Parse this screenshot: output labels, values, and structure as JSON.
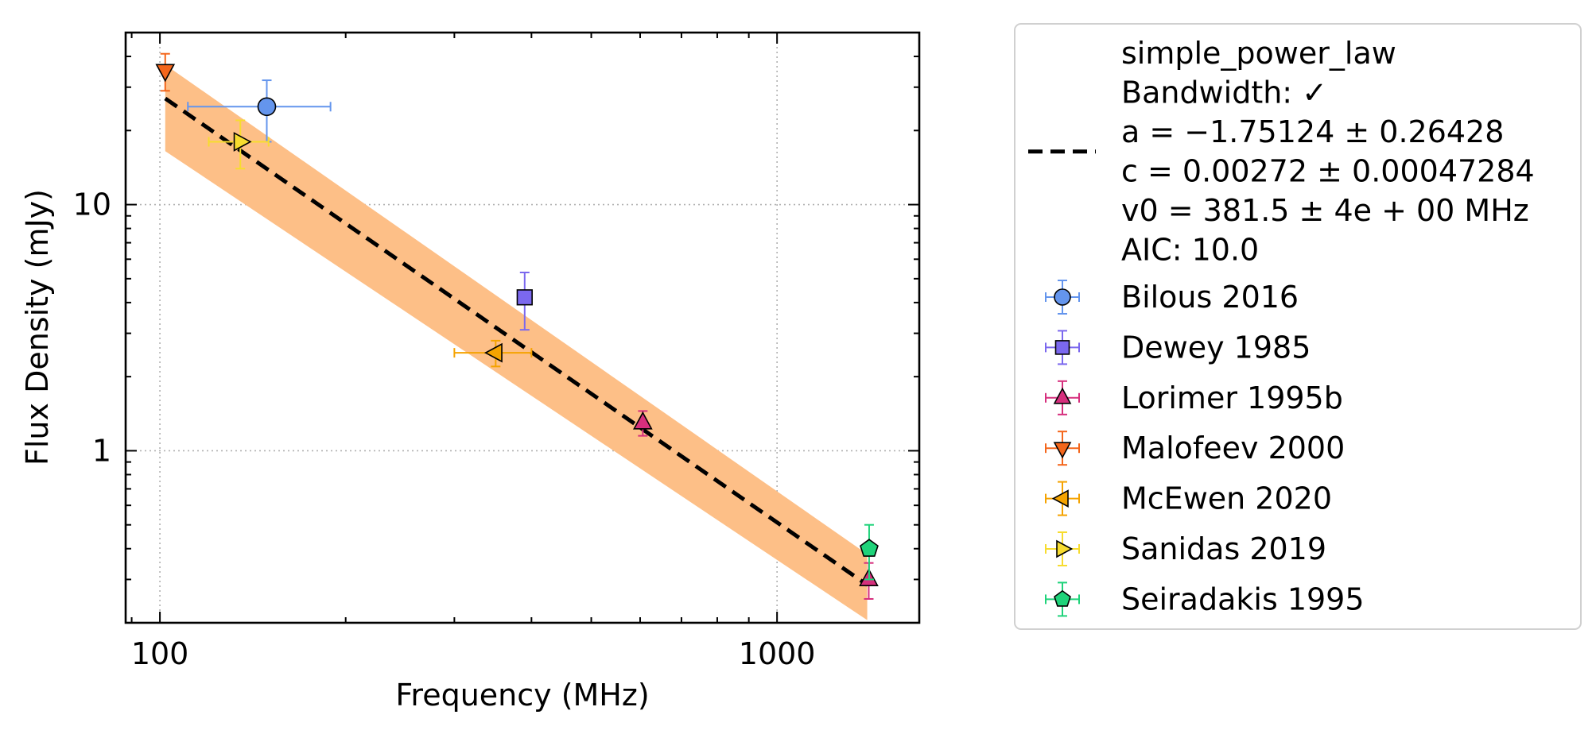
{
  "chart_data": {
    "type": "scatter",
    "xlabel": "Frequency (MHz)",
    "ylabel": "Flux Density (mJy)",
    "x_scale": "log",
    "y_scale": "log",
    "xlim": [
      88,
      1700
    ],
    "ylim": [
      0.2,
      50
    ],
    "x_ticks": [
      {
        "value": 100,
        "label": "100"
      },
      {
        "value": 1000,
        "label": "1000"
      }
    ],
    "y_ticks": [
      {
        "value": 1,
        "label": "1"
      },
      {
        "value": 10,
        "label": "10"
      }
    ],
    "grid": true,
    "legend_position": "outside-right",
    "fit": {
      "label_lines": [
        "simple_power_law",
        "Bandwidth: ✓",
        "a = −1.75124 ± 0.26428",
        "c = 0.00272 ± 0.00047284",
        "v0 = 381.5 ± 4e + 00 MHz",
        "AIC: 10.0"
      ],
      "model": "power_law",
      "a": -1.75124,
      "c": 0.00272,
      "v0": 381.5,
      "x_range": [
        102,
        1400
      ],
      "line_color": "#000000",
      "band_color": "#fdbf87",
      "band_upper": [
        [
          102,
          37
        ],
        [
          1400,
          0.38
        ]
      ],
      "band_lower": [
        [
          102,
          16.5
        ],
        [
          1400,
          0.205
        ]
      ]
    },
    "series": [
      {
        "name": "Bilous 2016",
        "marker": "circle",
        "color": "#6495ed",
        "points": [
          {
            "x": 149,
            "y": 25,
            "xerr": [
              38,
              40
            ],
            "yerr": [
              7,
              7
            ]
          }
        ]
      },
      {
        "name": "Dewey 1985",
        "marker": "square",
        "color": "#7b68ee",
        "points": [
          {
            "x": 390,
            "y": 4.2,
            "xerr": [
              0,
              0
            ],
            "yerr": [
              1.1,
              1.1
            ]
          }
        ]
      },
      {
        "name": "Lorimer 1995b",
        "marker": "triangle-up",
        "color": "#d62f7d",
        "points": [
          {
            "x": 606,
            "y": 1.3,
            "xerr": [
              0,
              0
            ],
            "yerr": [
              0.15,
              0.15
            ]
          },
          {
            "x": 1408,
            "y": 0.3,
            "xerr": [
              0,
              0
            ],
            "yerr": [
              0.05,
              0.05
            ]
          }
        ]
      },
      {
        "name": "Malofeev 2000",
        "marker": "triangle-down",
        "color": "#f4661b",
        "points": [
          {
            "x": 102,
            "y": 35,
            "xerr": [
              0,
              0
            ],
            "yerr": [
              6,
              6
            ]
          }
        ]
      },
      {
        "name": "McEwen 2020",
        "marker": "triangle-left",
        "color": "#f5a300",
        "points": [
          {
            "x": 350,
            "y": 2.5,
            "xerr": [
              50,
              50
            ],
            "yerr": [
              0.3,
              0.3
            ]
          }
        ]
      },
      {
        "name": "Sanidas 2019",
        "marker": "triangle-right",
        "color": "#f7dc2f",
        "points": [
          {
            "x": 135,
            "y": 18,
            "xerr": [
              15,
              15
            ],
            "yerr": [
              4,
              4
            ]
          }
        ]
      },
      {
        "name": "Seiradakis 1995",
        "marker": "pentagon",
        "color": "#1fd37a",
        "points": [
          {
            "x": 1410,
            "y": 0.4,
            "xerr": [
              0,
              0
            ],
            "yerr": [
              0.1,
              0.1
            ]
          }
        ]
      }
    ]
  }
}
